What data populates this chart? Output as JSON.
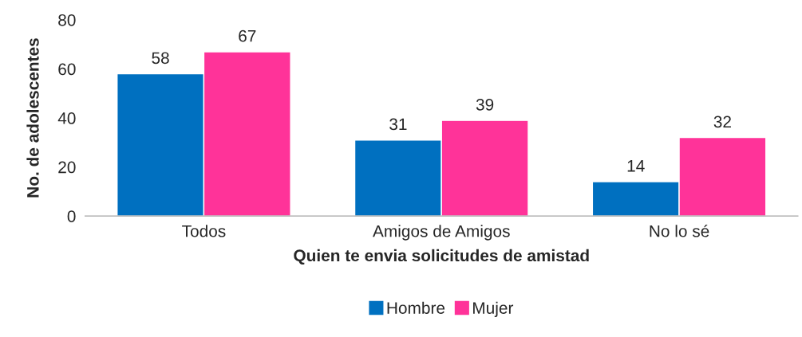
{
  "chart_data": {
    "type": "bar",
    "xlabel": "Quien te envia solicitudes de amistad",
    "ylabel": "No. de adolescentes",
    "categories": [
      "Todos",
      "Amigos de Amigos",
      "No lo sé"
    ],
    "series": [
      {
        "name": "Hombre",
        "color": "#0070c0",
        "values": [
          58,
          31,
          14
        ]
      },
      {
        "name": "Mujer",
        "color": "#ff3399",
        "values": [
          67,
          39,
          32
        ]
      }
    ],
    "ylim": [
      0,
      80
    ],
    "yticks": [
      0,
      20,
      40,
      60,
      80
    ],
    "data_labels": true,
    "legend": "bottom",
    "grid": false
  }
}
